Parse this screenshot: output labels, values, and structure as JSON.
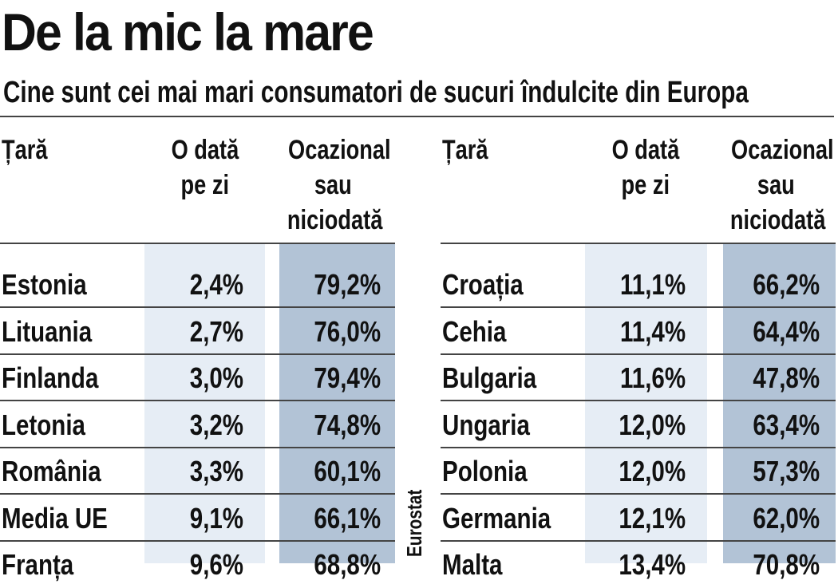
{
  "header": {
    "title": "De la mic la mare",
    "subtitle": "Cine sunt cei mai mari consumatori de sucuri îndulcite din Europa"
  },
  "columns": {
    "country": "Țară",
    "daily_line1": "O dată",
    "daily_line2": "pe zi",
    "rare_line1": "Ocazional",
    "rare_line2": "sau",
    "rare_line3": "niciodată"
  },
  "source": "Eurostat",
  "colors": {
    "band_light": "#e6edf5",
    "band_dark": "#b2c3d6",
    "text": "#111111",
    "rule": "#444444"
  },
  "left_table": [
    {
      "country": "Estonia",
      "daily": "2,4%",
      "rare": "79,2%"
    },
    {
      "country": "Lituania",
      "daily": "2,7%",
      "rare": "76,0%"
    },
    {
      "country": "Finlanda",
      "daily": "3,0%",
      "rare": "79,4%"
    },
    {
      "country": "Letonia",
      "daily": "3,2%",
      "rare": "74,8%"
    },
    {
      "country": "România",
      "daily": "3,3%",
      "rare": "60,1%"
    },
    {
      "country": "Media UE",
      "daily": "9,1%",
      "rare": "66,1%"
    },
    {
      "country": "Franța",
      "daily": "9,6%",
      "rare": "68,8%"
    }
  ],
  "right_table": [
    {
      "country": "Croația",
      "daily": "11,1%",
      "rare": "66,2%"
    },
    {
      "country": "Cehia",
      "daily": "11,4%",
      "rare": "64,4%"
    },
    {
      "country": "Bulgaria",
      "daily": "11,6%",
      "rare": "47,8%"
    },
    {
      "country": "Ungaria",
      "daily": "12,0%",
      "rare": "63,4%"
    },
    {
      "country": "Polonia",
      "daily": "12,0%",
      "rare": "57,3%"
    },
    {
      "country": "Germania",
      "daily": "12,1%",
      "rare": "62,0%"
    },
    {
      "country": "Malta",
      "daily": "13,4%",
      "rare": "70,8%"
    }
  ]
}
